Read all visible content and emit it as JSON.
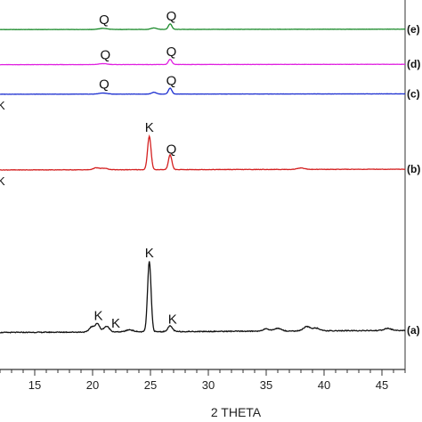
{
  "chart_data": {
    "type": "line",
    "title": "",
    "xlabel": "2 THETA",
    "ylabel": "",
    "xlim": [
      12,
      47
    ],
    "x_ticks": [
      15,
      20,
      25,
      30,
      35,
      40,
      45
    ],
    "grid": false,
    "series": [
      {
        "name": "(e)",
        "color": "#1a8a2a",
        "offset": 0.92,
        "amp": 0.05,
        "baseline": [
          [
            12,
            0.0
          ],
          [
            47,
            0.02
          ]
        ],
        "peaks": [
          [
            20.9,
            0.06,
            0.35
          ],
          [
            25.3,
            0.08,
            0.25
          ],
          [
            26.7,
            0.3,
            0.15
          ]
        ],
        "annotations": [
          {
            "x": 21.0,
            "text": "Q"
          },
          {
            "x": 26.8,
            "text": "Q"
          }
        ]
      },
      {
        "name": "(d)",
        "color": "#e020e0",
        "offset": 0.825,
        "amp": 0.05,
        "baseline": [
          [
            12,
            0.0
          ],
          [
            47,
            0.02
          ]
        ],
        "peaks": [
          [
            20.9,
            0.05,
            0.35
          ],
          [
            26.7,
            0.28,
            0.15
          ]
        ],
        "annotations": [
          {
            "x": 21.1,
            "text": "Q"
          },
          {
            "x": 26.8,
            "text": "Q"
          }
        ]
      },
      {
        "name": "(c)",
        "color": "#1c2fd0",
        "offset": 0.745,
        "amp": 0.05,
        "baseline": [
          [
            12,
            0.0
          ],
          [
            47,
            0.02
          ]
        ],
        "peaks": [
          [
            20.9,
            0.06,
            0.35
          ],
          [
            25.3,
            0.1,
            0.2
          ],
          [
            26.7,
            0.32,
            0.15
          ]
        ],
        "annotations": [
          {
            "x": 21.0,
            "text": "Q"
          },
          {
            "x": 26.8,
            "text": "Q"
          }
        ]
      },
      {
        "name": "(b)",
        "color": "#d42020",
        "offset": 0.54,
        "amp": 0.1,
        "baseline": [
          [
            12,
            0.0
          ],
          [
            47,
            0.02
          ]
        ],
        "peaks": [
          [
            20.3,
            0.05,
            0.25
          ],
          [
            21.0,
            0.04,
            0.3
          ],
          [
            24.9,
            0.9,
            0.15
          ],
          [
            26.7,
            0.4,
            0.15
          ],
          [
            38.0,
            0.04,
            0.3
          ]
        ],
        "annotations": [
          {
            "x": 24.9,
            "text": "K"
          },
          {
            "x": 26.8,
            "text": "Q"
          }
        ]
      },
      {
        "name": "(a)",
        "color": "#111111",
        "offset": 0.1,
        "amp": 0.19,
        "baseline": [
          [
            12,
            0.0
          ],
          [
            47,
            0.03
          ]
        ],
        "peaks": [
          [
            19.9,
            0.07,
            0.2
          ],
          [
            20.4,
            0.12,
            0.2
          ],
          [
            21.2,
            0.08,
            0.25
          ],
          [
            23.2,
            0.03,
            0.3
          ],
          [
            24.9,
            1.0,
            0.15
          ],
          [
            26.7,
            0.08,
            0.2
          ],
          [
            35.0,
            0.03,
            0.3
          ],
          [
            36.0,
            0.04,
            0.3
          ],
          [
            38.5,
            0.06,
            0.3
          ],
          [
            39.3,
            0.04,
            0.3
          ],
          [
            45.5,
            0.03,
            0.3
          ]
        ],
        "annotations": [
          {
            "x": 20.5,
            "text": "K"
          },
          {
            "x": 22.0,
            "text": "K"
          },
          {
            "x": 24.9,
            "text": "K"
          },
          {
            "x": 26.9,
            "text": "K"
          }
        ]
      }
    ],
    "edge_marks": [
      {
        "series": "(c)",
        "text": "K"
      },
      {
        "series": "(b)",
        "text": "K"
      }
    ]
  }
}
